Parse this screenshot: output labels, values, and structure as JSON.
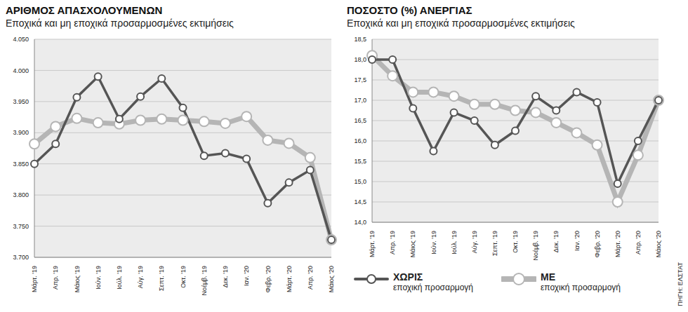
{
  "chart_data": [
    {
      "type": "line",
      "title": "ΑΡΙΘΜΟΣ ΑΠΑΣΧΟΛΟΥΜΕΝΩΝ",
      "subtitle": "Εποχικά και μη εποχικά προσαρμοσμένες εκτιμήσεις",
      "categories": [
        "Μάρτ. '19",
        "Απρ. '19",
        "Μάιος '19",
        "Ιούν. '19",
        "Ιούλ. '19",
        "Αύγ. '19",
        "Σεπτ. '19",
        "Οκτ. '19",
        "Νοέμβ. '19",
        "Δεκ. '19",
        "Ιαν. '20",
        "Φεβρ. '20",
        "Μάρτ. '20",
        "Απρ. '20",
        "Μάιος '20"
      ],
      "series": [
        {
          "name": "ΜΕ εποχική προσαρμογή",
          "color": "#b5b5b5",
          "marker": "circle",
          "line_style": "solid",
          "values": [
            3882,
            3910,
            3923,
            3916,
            3914,
            3920,
            3922,
            3920,
            3918,
            3915,
            3926,
            3888,
            3883,
            3860,
            3728
          ]
        },
        {
          "name": "ΧΩΡΙΣ εποχική προσαρμογή",
          "color": "#555555",
          "marker": "circle",
          "line_style": "solid",
          "values": [
            3850,
            3882,
            3957,
            3990,
            3922,
            3958,
            3987,
            3940,
            3863,
            3867,
            3858,
            3787,
            3820,
            3840,
            3728
          ]
        }
      ],
      "ylim": [
        3700,
        4050
      ],
      "yticks": [
        {
          "value": 3700,
          "label": "3.700"
        },
        {
          "value": 3750,
          "label": "3.750"
        },
        {
          "value": 3800,
          "label": "3.800"
        },
        {
          "value": 3850,
          "label": "3.850"
        },
        {
          "value": 3900,
          "label": "3.900"
        },
        {
          "value": 3950,
          "label": "3.950"
        },
        {
          "value": 4000,
          "label": "4.000"
        },
        {
          "value": 4050,
          "label": "4.050"
        }
      ],
      "grid": true
    },
    {
      "type": "line",
      "title": "ΠΟΣΟΣΤΟ (%) ΑΝΕΡΓΙΑΣ",
      "subtitle": "Εποχικά και μη εποχικά προσαρμοσμένες εκτιμήσεις",
      "categories": [
        "Μάρτ. '19",
        "Απρ. '19",
        "Μάιος '19",
        "Ιούν. '19",
        "Ιούλ. '19",
        "Αύγ. '19",
        "Σεπτ. '19",
        "Οκτ. '19",
        "Νοέμβ. '19",
        "Δεκ. '19",
        "Ιαν. '20",
        "Φεβρ. '20",
        "Μάρτ. '20",
        "Απρ. '20",
        "Μάιος '20"
      ],
      "series": [
        {
          "name": "ΜΕ εποχική προσαρμογή",
          "color": "#b5b5b5",
          "marker": "circle",
          "line_style": "solid",
          "values": [
            18.1,
            17.6,
            17.2,
            17.2,
            17.1,
            16.9,
            16.9,
            16.75,
            16.7,
            16.45,
            16.2,
            15.9,
            14.5,
            15.65,
            17.0
          ]
        },
        {
          "name": "ΧΩΡΙΣ εποχική προσαρμογή",
          "color": "#555555",
          "marker": "circle",
          "line_style": "solid",
          "values": [
            18.0,
            18.0,
            16.8,
            15.75,
            16.7,
            16.5,
            15.9,
            16.25,
            17.1,
            16.75,
            17.2,
            16.95,
            14.95,
            16.0,
            17.0
          ]
        }
      ],
      "ylim": [
        14.0,
        18.5
      ],
      "yticks": [
        {
          "value": 14.0,
          "label": "14,0"
        },
        {
          "value": 14.5,
          "label": "14,5"
        },
        {
          "value": 15.0,
          "label": "15,0"
        },
        {
          "value": 15.5,
          "label": "15,5"
        },
        {
          "value": 16.0,
          "label": "16,0"
        },
        {
          "value": 16.5,
          "label": "16,5"
        },
        {
          "value": 17.0,
          "label": "17,0"
        },
        {
          "value": 17.5,
          "label": "17,5"
        },
        {
          "value": 18.0,
          "label": "18,0"
        },
        {
          "value": 18.5,
          "label": "18,5"
        }
      ],
      "grid": true,
      "legend": "bottom",
      "source": "ΠΗΓΗ: ΕΛΣΤΑΤ"
    }
  ]
}
